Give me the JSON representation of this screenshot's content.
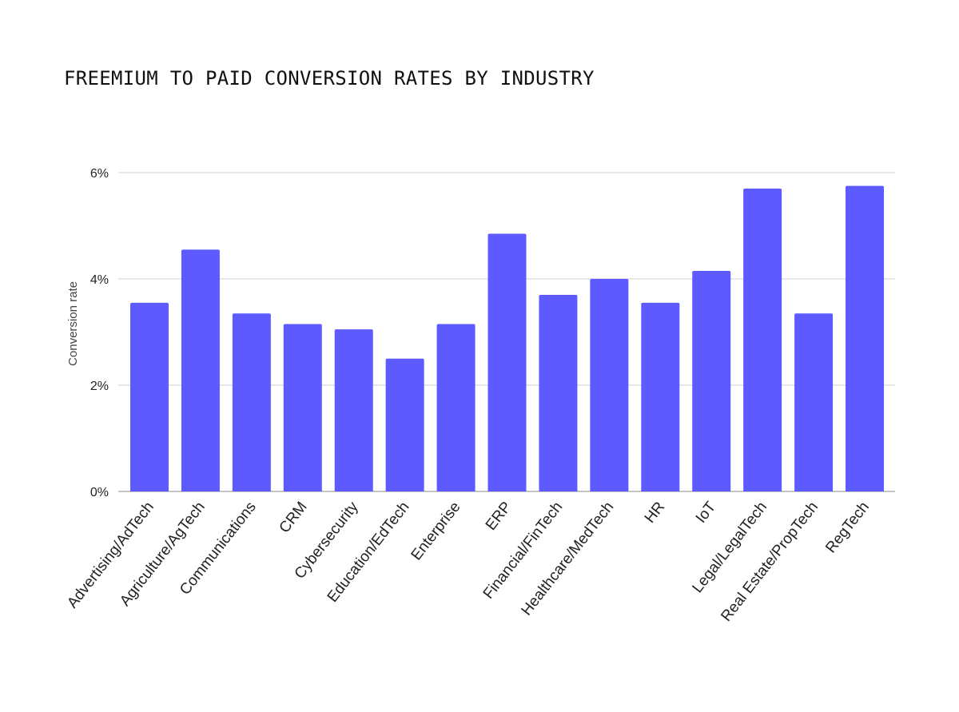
{
  "chart_data": {
    "type": "bar",
    "title": "FREEMIUM TO PAID CONVERSION RATES BY INDUSTRY",
    "xlabel": "",
    "ylabel": "Conversion rate",
    "ylim": [
      0,
      6
    ],
    "yticks": [
      0,
      2,
      4,
      6
    ],
    "ytick_labels": [
      "0%",
      "2%",
      "4%",
      "6%"
    ],
    "grid": true,
    "bar_color": "#5d5bff",
    "categories": [
      "Advertising/AdTech",
      "Agriculture/AgTech",
      "Communications",
      "CRM",
      "Cybersecurity",
      "Education/EdTech",
      "Enterprise",
      "ERP",
      "Financial/FinTech",
      "Healthcare/MedTech",
      "HR",
      "IoT",
      "Legal/LegalTech",
      "Real Estate/PropTech",
      "RegTech"
    ],
    "values": [
      3.55,
      4.55,
      3.35,
      3.15,
      3.05,
      2.5,
      3.15,
      4.85,
      3.7,
      4.0,
      3.55,
      4.15,
      5.7,
      3.35,
      5.75
    ]
  }
}
